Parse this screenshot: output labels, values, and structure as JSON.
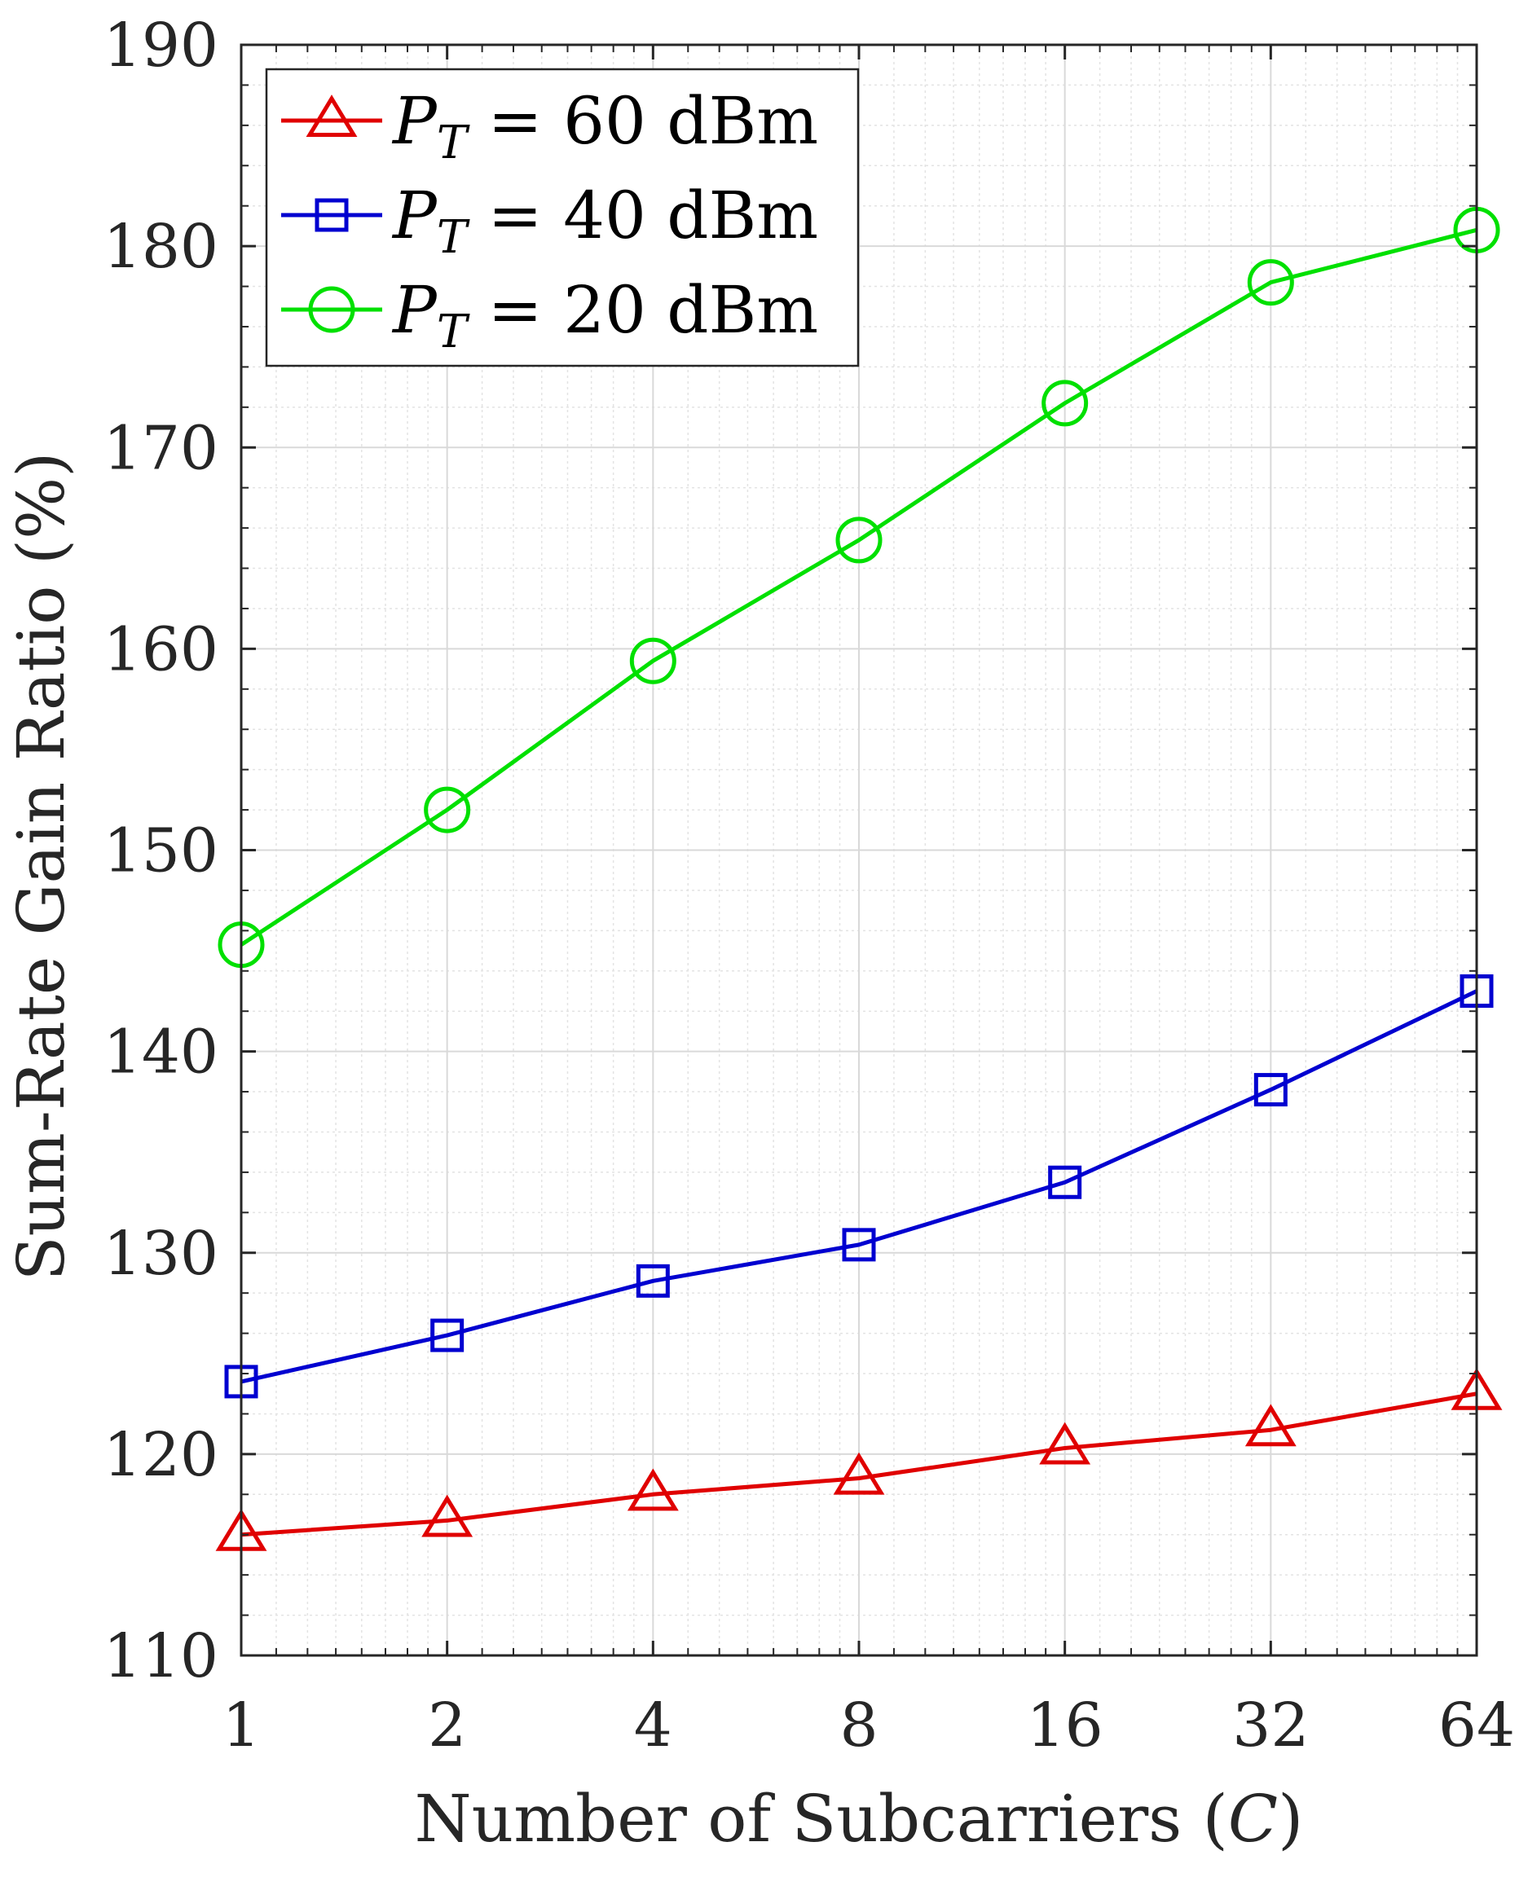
{
  "chart_data": {
    "type": "line",
    "xlabel": "Number of Subcarriers (",
    "xlabel_symbol": "C",
    "xlabel_end": ")",
    "ylabel": "Sum-Rate Gain Ratio (%)",
    "x_scale": "log2",
    "x": [
      1,
      2,
      4,
      8,
      16,
      32,
      64
    ],
    "x_tick_labels": [
      "1",
      "2",
      "4",
      "8",
      "16",
      "32",
      "64"
    ],
    "ylim": [
      110,
      190
    ],
    "y_ticks": [
      110,
      120,
      130,
      140,
      150,
      160,
      170,
      180,
      190
    ],
    "y_tick_labels": [
      "110",
      "120",
      "130",
      "140",
      "150",
      "160",
      "170",
      "180",
      "190"
    ],
    "grid": true,
    "minor_grid": true,
    "legend_position": "top-left",
    "series": [
      {
        "name": "P_T = 60 dBm",
        "legend_symbol": "P",
        "legend_subscript": "T",
        "legend_value": " = 60 dBm",
        "color": "#e00000",
        "marker": "triangle",
        "values": [
          116.0,
          116.7,
          118.0,
          118.8,
          120.3,
          121.2,
          123.0
        ]
      },
      {
        "name": "P_T = 40 dBm",
        "legend_symbol": "P",
        "legend_subscript": "T",
        "legend_value": " = 40 dBm",
        "color": "#0000d0",
        "marker": "square",
        "values": [
          123.6,
          125.9,
          128.6,
          130.4,
          133.5,
          138.1,
          143.0
        ]
      },
      {
        "name": "P_T = 20 dBm",
        "legend_symbol": "P",
        "legend_subscript": "T",
        "legend_value": " = 20 dBm",
        "color": "#00e000",
        "marker": "circle",
        "values": [
          145.3,
          152.0,
          159.4,
          165.4,
          172.2,
          178.2,
          180.8
        ]
      }
    ]
  }
}
